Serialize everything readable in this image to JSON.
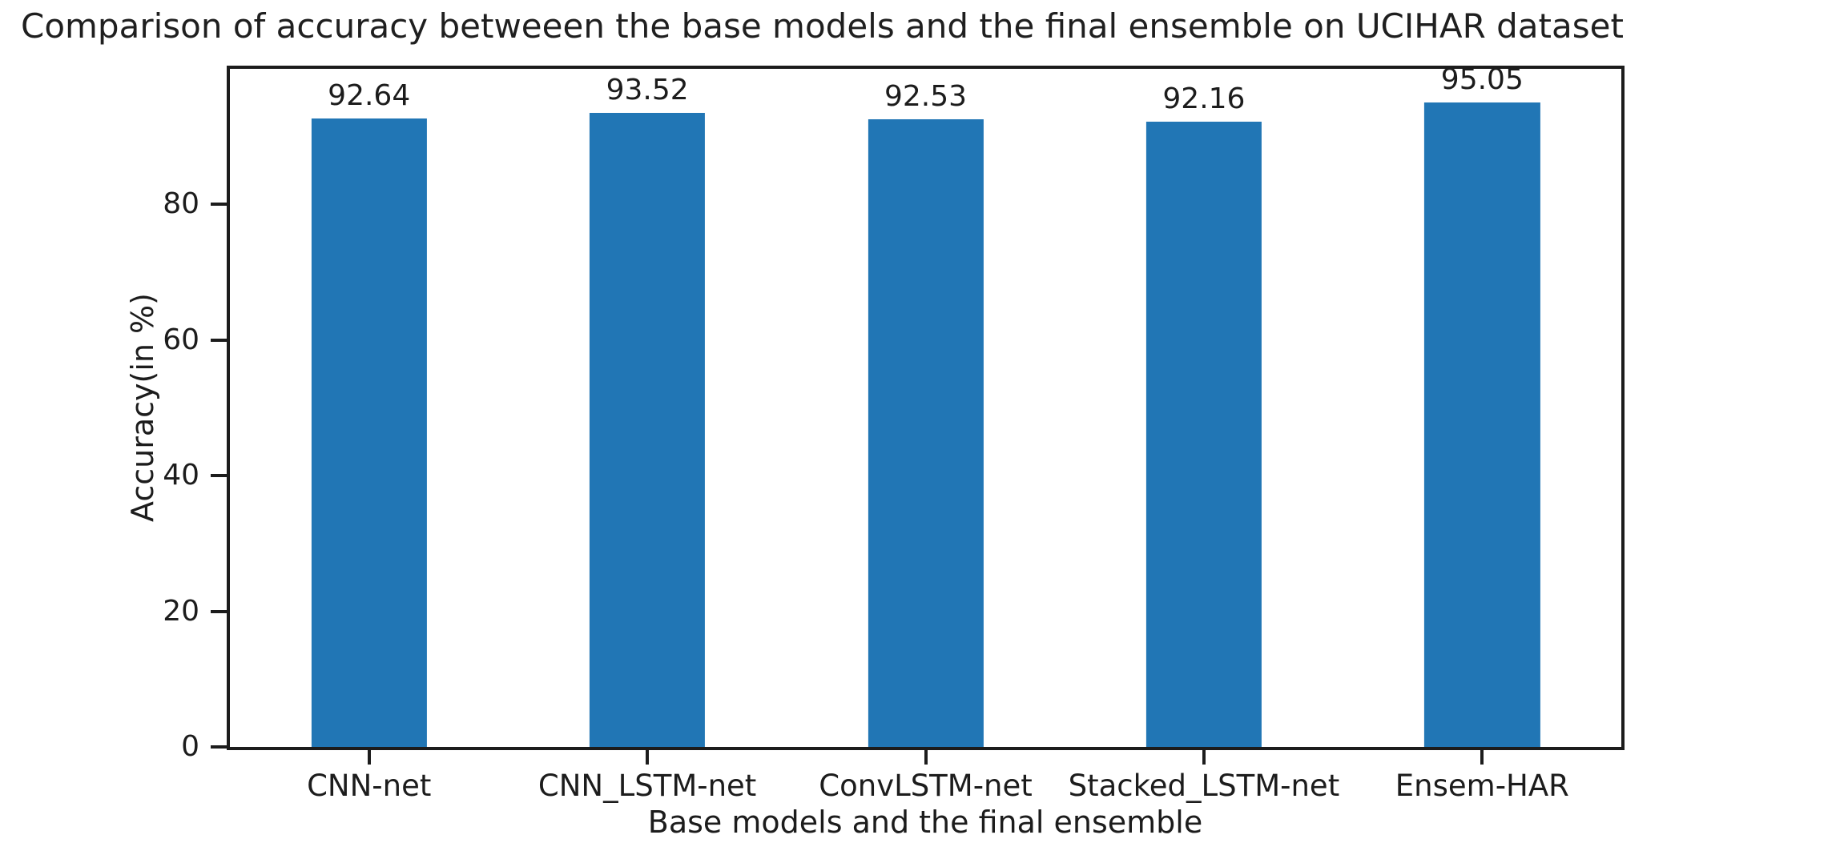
{
  "chart_data": {
    "type": "bar",
    "title": "Comparison of accuracy betweeen the base models and the final ensemble on UCIHAR dataset",
    "xlabel": "Base models and the final ensemble",
    "ylabel": "Accuracy(in %)",
    "categories": [
      "CNN-net",
      "CNN_LSTM-net",
      "ConvLSTM-net",
      "Stacked_LSTM-net",
      "Ensem-HAR"
    ],
    "values": [
      92.64,
      93.52,
      92.53,
      92.16,
      95.05
    ],
    "bar_labels": [
      "92.64",
      "93.52",
      "92.53",
      "92.16",
      "95.05"
    ],
    "yticks": [
      0,
      20,
      40,
      60,
      80
    ],
    "ylim": [
      0,
      100
    ],
    "grid": false,
    "legend_position": "none",
    "bar_color": "#2176b5",
    "axis_color": "#1c1c1c",
    "background_color": "#ffffff"
  }
}
